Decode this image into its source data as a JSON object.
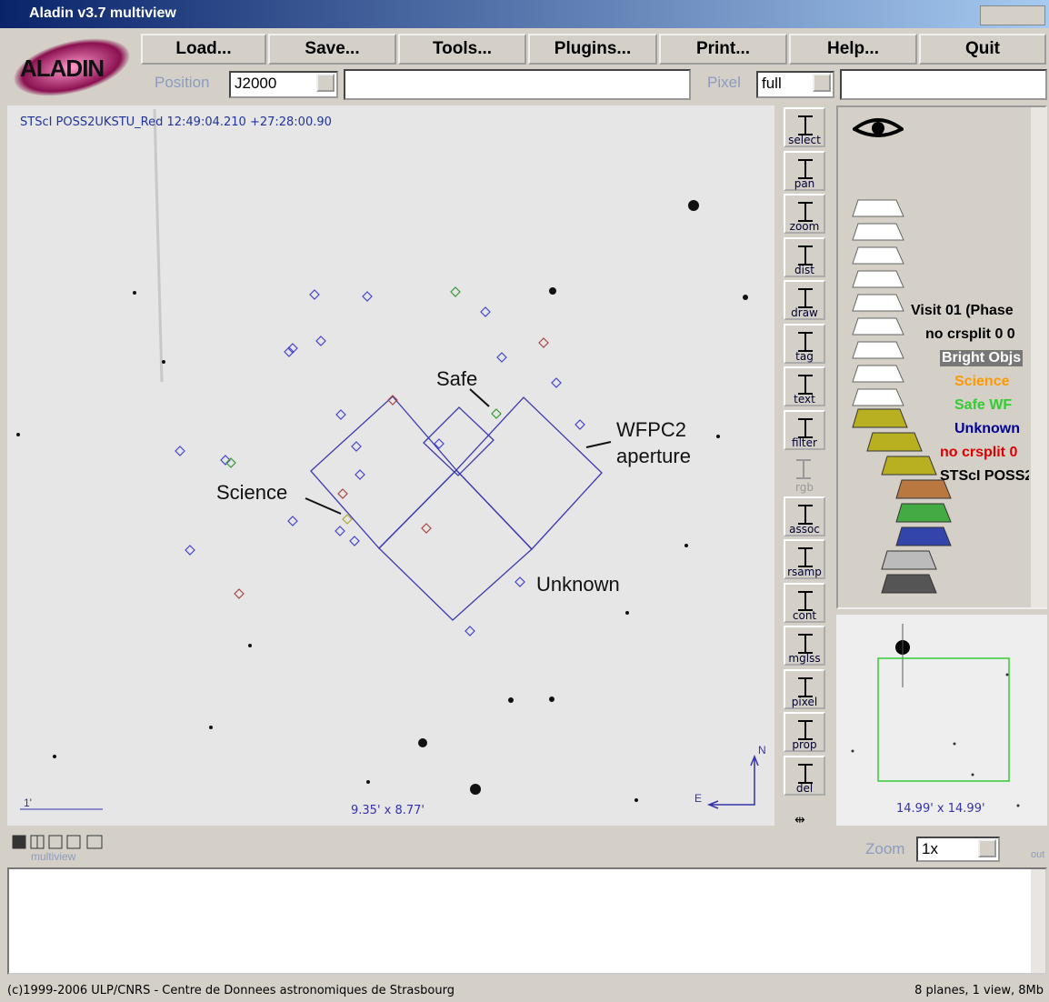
{
  "window": {
    "title": "Aladin v3.7 multiview"
  },
  "logo": "ALADIN",
  "menu": [
    "Load...",
    "Save...",
    "Tools...",
    "Plugins...",
    "Print...",
    "Help...",
    "Quit"
  ],
  "location": {
    "position_label": "Position",
    "frame": "J2000",
    "pixel_label": "Pixel",
    "pixel_mode": "full"
  },
  "view": {
    "header": "STScI POSS2UKSTU_Red 12:49:04.210 +27:28:00.90",
    "annotations": [
      "Safe",
      "WFPC2",
      "aperture",
      "Science",
      "Unknown"
    ],
    "scale": "1'",
    "size": "9.35' x 8.77'",
    "north": "N",
    "east": "E"
  },
  "tools": [
    "select",
    "pan",
    "zoom",
    "dist",
    "draw",
    "tag",
    "text",
    "filter",
    "rgb",
    "assoc",
    "rsamp",
    "cont",
    "mglss",
    "pixel",
    "prop",
    "del"
  ],
  "planes": [
    {
      "name": "Visit 01 (Phase",
      "color": "#000000"
    },
    {
      "name": "no crsplit 0 0",
      "color": "#000000"
    },
    {
      "name": "Bright Objs",
      "color": "#ffffff"
    },
    {
      "name": "Science",
      "color": "#ff9900"
    },
    {
      "name": "Safe WF",
      "color": "#33cc33"
    },
    {
      "name": "Unknown",
      "color": "#000099"
    },
    {
      "name": "no crsplit 0",
      "color": "#dd0000"
    },
    {
      "name": "STScI POSS2",
      "color": "#000000"
    }
  ],
  "zoom_view": {
    "size": "14.99' x 14.99'"
  },
  "bottom": {
    "multiview": "multiview",
    "zoom_label": "Zoom",
    "zoom_value": "1x",
    "out": "out"
  },
  "status": {
    "left": "(c)1999-2006 ULP/CNRS - Centre de Donnees astronomiques de Strasbourg",
    "right": "8 planes, 1 view, 8Mb"
  }
}
